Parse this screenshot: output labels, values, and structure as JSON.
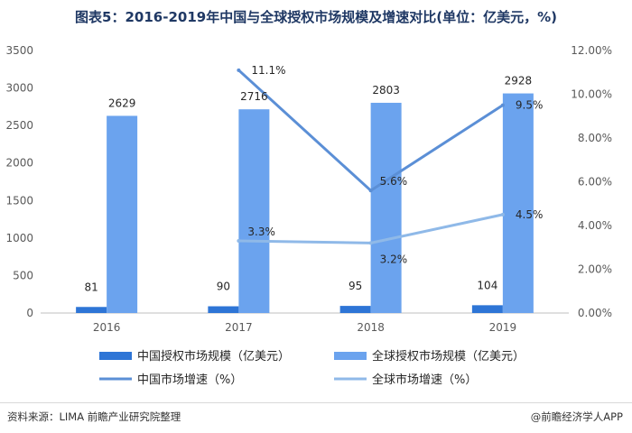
{
  "title": "图表5：2016-2019年中国与全球授权市场规模及增速对比(单位：亿美元，%)",
  "source": "资料来源：LIMA 前瞻产业研究院整理",
  "brand": "@前瞻经济学人APP",
  "colors": {
    "china_bar": "#2e75d6",
    "global_bar": "#6ba3ee",
    "china_line": "#5b8fd6",
    "global_line": "#8fb9e8"
  },
  "chart_data": {
    "type": "bar",
    "categories": [
      "2016",
      "2017",
      "2018",
      "2019"
    ],
    "series": [
      {
        "name": "中国授权市场规模（亿美元）",
        "type": "bar",
        "axis": "left",
        "values": [
          81,
          90,
          95,
          104
        ],
        "labels": [
          "81",
          "90",
          "95",
          "104"
        ]
      },
      {
        "name": "全球授权市场规模（亿美元）",
        "type": "bar",
        "axis": "left",
        "values": [
          2629,
          2716,
          2803,
          2928
        ],
        "labels": [
          "2629",
          "2716",
          "2803",
          "2928"
        ]
      },
      {
        "name": "中国市场增速（%）",
        "type": "line",
        "axis": "right",
        "values": [
          null,
          11.1,
          5.6,
          9.5
        ],
        "labels": [
          "",
          "11.1%",
          "5.6%",
          "9.5%"
        ]
      },
      {
        "name": "全球市场增速（%）",
        "type": "line",
        "axis": "right",
        "values": [
          null,
          3.3,
          3.2,
          4.5
        ],
        "labels": [
          "",
          "3.3%",
          "3.2%",
          "4.5%"
        ]
      }
    ],
    "y_left": {
      "min": 0,
      "max": 3500,
      "ticks": [
        "0",
        "500",
        "1000",
        "1500",
        "2000",
        "2500",
        "3000",
        "3500"
      ]
    },
    "y_right": {
      "min": 0,
      "max": 12,
      "ticks": [
        "0.00%",
        "2.00%",
        "4.00%",
        "6.00%",
        "8.00%",
        "10.00%",
        "12.00%"
      ]
    },
    "grid": false,
    "legend_position": "bottom"
  }
}
